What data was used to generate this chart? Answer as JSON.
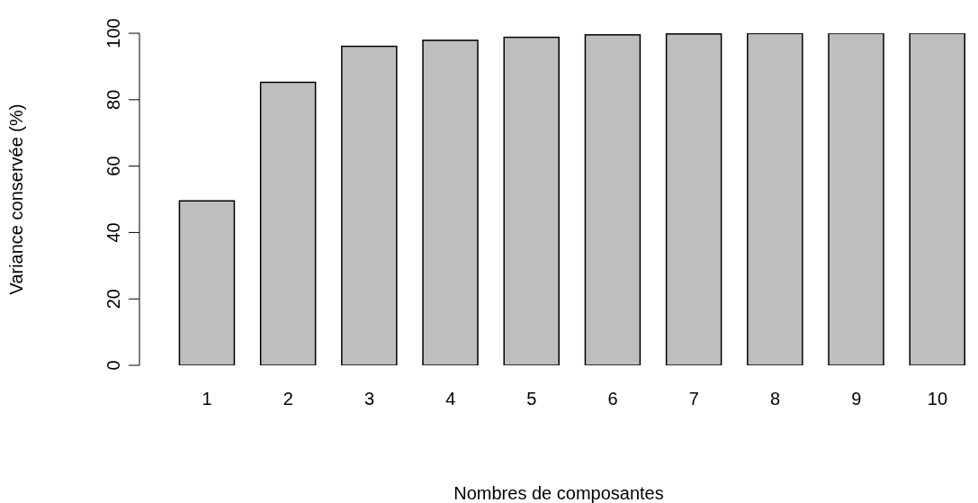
{
  "chart_data": {
    "type": "bar",
    "xlabel": "Nombres de composantes",
    "ylabel": "Variance conservée (%)",
    "categories": [
      "1",
      "2",
      "3",
      "4",
      "5",
      "6",
      "7",
      "8",
      "9",
      "10"
    ],
    "values": [
      49.5,
      85.2,
      96.1,
      97.9,
      98.8,
      99.5,
      99.8,
      99.9,
      100,
      100
    ],
    "color": "#bebebe",
    "ylim": [
      0,
      100
    ],
    "yticks": [
      0,
      20,
      40,
      60,
      80,
      100
    ],
    "grid": false,
    "legend": false
  }
}
